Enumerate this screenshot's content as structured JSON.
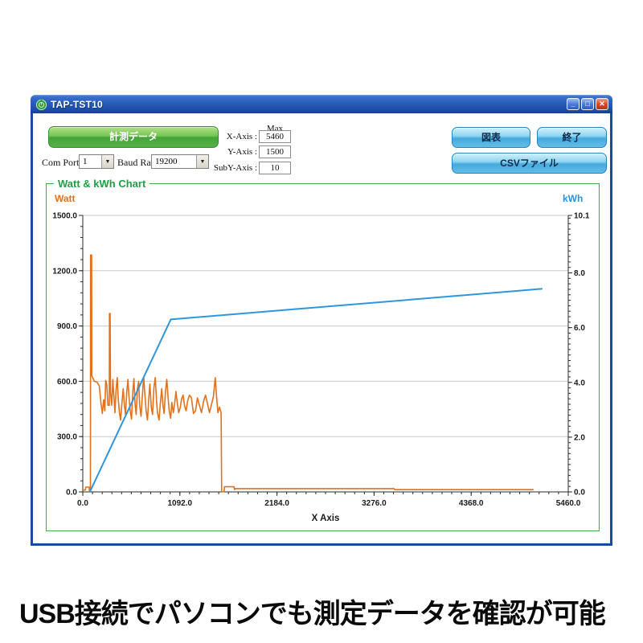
{
  "window": {
    "title": "TAP-TST10",
    "controls": {
      "minimize": "_",
      "maximize": "□",
      "close": "✕"
    }
  },
  "toolbar": {
    "measure_button": "計測データ",
    "com_port_label": "Com Port",
    "com_port_value": "1",
    "baud_rate_label": "Baud Rate",
    "baud_rate_value": "19200",
    "max_header": "Max",
    "axis_rows": [
      {
        "label": "X-Axis :",
        "value": "5460"
      },
      {
        "label": "Y-Axis :",
        "value": "1500"
      },
      {
        "label": "SubY-Axis :",
        "value": "10"
      }
    ],
    "chart_button": "図表",
    "exit_button": "終了",
    "csv_button": "CSVファイル"
  },
  "chart_panel": {
    "group_title": "Watt & kWh Chart",
    "left_series_label": "Watt",
    "right_series_label": "kWh"
  },
  "caption": "USB接続でパソコンでも測定データを確認が可能",
  "colors": {
    "watt_series": "#e2711d",
    "kwh_series": "#2e96dc",
    "group_border": "#3cae54",
    "group_title": "#1f9e46",
    "titlebar_blue": "#2a5cbb",
    "measure_button_green": "#44a438",
    "action_button_blue": "#45aadd",
    "grid_line": "#c9c9c9"
  },
  "chart_data": {
    "type": "line",
    "title": "Watt & kWh Chart",
    "xlabel": "X Axis",
    "grid": "horizontal-only",
    "x_axis": {
      "min": 0,
      "max": 5460,
      "minor_step": 109.2,
      "major_ticks": [
        0,
        1092,
        2184,
        3276,
        4368,
        5460
      ],
      "tick_labels": [
        "0.0",
        "1092.0",
        "2184.0",
        "3276.0",
        "4368.0",
        "5460.0"
      ]
    },
    "y_left": {
      "label": "Watt",
      "min": 0,
      "max": 1500,
      "minor_step": 60,
      "major_ticks": [
        0,
        300,
        600,
        900,
        1200,
        1500
      ],
      "tick_labels": [
        "0.0",
        "300.0",
        "600.0",
        "900.0",
        "1200.0",
        "1500.0"
      ],
      "color": "#e2711d"
    },
    "y_right": {
      "label": "kWh",
      "min": 0,
      "max": 10.1,
      "minor_step": 0.2,
      "major_ticks": [
        0,
        2,
        4,
        6,
        8,
        10.1
      ],
      "tick_labels": [
        "0.0",
        "2.0",
        "4.0",
        "6.0",
        "8.0",
        "10.1"
      ],
      "color": "#2e96dc"
    },
    "series": [
      {
        "name": "Watt",
        "axis": "left",
        "color": "#e2711d",
        "width": 1.6,
        "points": [
          [
            0,
            10
          ],
          [
            30,
            10
          ],
          [
            33,
            26
          ],
          [
            72,
            26
          ],
          [
            75,
            4
          ],
          [
            86,
            4
          ],
          [
            88,
            1285
          ],
          [
            99,
            1285
          ],
          [
            101,
            630
          ],
          [
            130,
            600
          ],
          [
            160,
            595
          ],
          [
            185,
            575
          ],
          [
            205,
            480
          ],
          [
            220,
            425
          ],
          [
            235,
            500
          ],
          [
            248,
            440
          ],
          [
            258,
            605
          ],
          [
            270,
            580
          ],
          [
            283,
            470
          ],
          [
            298,
            470
          ],
          [
            300,
            968
          ],
          [
            307,
            968
          ],
          [
            312,
            540
          ],
          [
            325,
            470
          ],
          [
            338,
            610
          ],
          [
            350,
            520
          ],
          [
            362,
            430
          ],
          [
            375,
            560
          ],
          [
            388,
            620
          ],
          [
            400,
            500
          ],
          [
            412,
            430
          ],
          [
            425,
            390
          ],
          [
            440,
            480
          ],
          [
            455,
            560
          ],
          [
            468,
            470
          ],
          [
            480,
            420
          ],
          [
            495,
            545
          ],
          [
            508,
            610
          ],
          [
            520,
            515
          ],
          [
            533,
            440
          ],
          [
            548,
            395
          ],
          [
            562,
            540
          ],
          [
            575,
            615
          ],
          [
            588,
            480
          ],
          [
            600,
            420
          ],
          [
            615,
            560
          ],
          [
            628,
            600
          ],
          [
            640,
            470
          ],
          [
            655,
            410
          ],
          [
            670,
            520
          ],
          [
            685,
            625
          ],
          [
            698,
            530
          ],
          [
            712,
            440
          ],
          [
            728,
            390
          ],
          [
            742,
            505
          ],
          [
            755,
            585
          ],
          [
            770,
            460
          ],
          [
            785,
            420
          ],
          [
            800,
            565
          ],
          [
            815,
            620
          ],
          [
            828,
            505
          ],
          [
            840,
            430
          ],
          [
            858,
            390
          ],
          [
            872,
            480
          ],
          [
            888,
            560
          ],
          [
            902,
            470
          ],
          [
            915,
            425
          ],
          [
            930,
            545
          ],
          [
            945,
            610
          ],
          [
            958,
            520
          ],
          [
            972,
            440
          ],
          [
            988,
            400
          ],
          [
            1002,
            485
          ],
          [
            1018,
            430
          ],
          [
            1032,
            475
          ],
          [
            1048,
            545
          ],
          [
            1062,
            485
          ],
          [
            1078,
            430
          ],
          [
            1095,
            455
          ],
          [
            1112,
            505
          ],
          [
            1128,
            525
          ],
          [
            1145,
            465
          ],
          [
            1162,
            440
          ],
          [
            1180,
            495
          ],
          [
            1200,
            525
          ],
          [
            1222,
            510
          ],
          [
            1245,
            425
          ],
          [
            1268,
            440
          ],
          [
            1290,
            510
          ],
          [
            1312,
            470
          ],
          [
            1335,
            430
          ],
          [
            1358,
            490
          ],
          [
            1380,
            525
          ],
          [
            1402,
            480
          ],
          [
            1425,
            430
          ],
          [
            1448,
            475
          ],
          [
            1470,
            520
          ],
          [
            1490,
            620
          ],
          [
            1505,
            515
          ],
          [
            1520,
            430
          ],
          [
            1538,
            460
          ],
          [
            1556,
            430
          ],
          [
            1562,
            0
          ],
          [
            1590,
            2
          ],
          [
            1594,
            28
          ],
          [
            1700,
            28
          ],
          [
            1708,
            12
          ],
          [
            1716,
            18
          ],
          [
            3500,
            18
          ],
          [
            3508,
            12
          ],
          [
            5070,
            12
          ]
        ]
      },
      {
        "name": "kWh",
        "axis": "right",
        "color": "#2e96dc",
        "width": 2,
        "points": [
          [
            80,
            0
          ],
          [
            990,
            6.3
          ],
          [
            5170,
            7.42
          ]
        ]
      }
    ]
  }
}
